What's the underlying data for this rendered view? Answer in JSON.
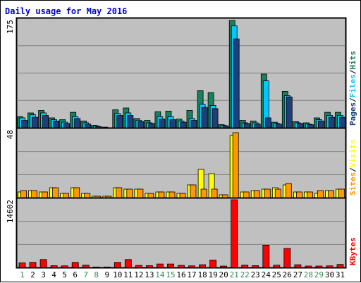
{
  "chart_data": {
    "type": "bar",
    "title": "Daily usage for May 2016",
    "categories": [
      "1",
      "2",
      "3",
      "4",
      "5",
      "6",
      "7",
      "8",
      "9",
      "10",
      "11",
      "12",
      "13",
      "14",
      "15",
      "16",
      "17",
      "18",
      "19",
      "20",
      "21",
      "22",
      "23",
      "24",
      "25",
      "26",
      "27",
      "28",
      "29",
      "30",
      "31"
    ],
    "weekend_days": [
      "1",
      "7",
      "8",
      "14",
      "15",
      "21",
      "22",
      "28",
      "29"
    ],
    "colors": {
      "title": "#0000cc",
      "weekday_label": "#000000",
      "weekend_label": "#2e8b57",
      "background": "#c0c0c0",
      "grid": "#808080",
      "hits": "#1a7f5c",
      "files": "#00c8ff",
      "pages": "#1f3f7a",
      "visits": "#ffff00",
      "sites": "#ff9900",
      "kbytes": "#ff0000"
    },
    "panels": [
      {
        "id": "hits-files-pages",
        "max_label": "175",
        "ymax": 175,
        "legend": [
          {
            "name": "Hits",
            "color": "#1a7f5c"
          },
          {
            "name": "Files",
            "color": "#00c8ff"
          },
          {
            "name": "Pages",
            "color": "#1f3f7a"
          }
        ],
        "series": [
          {
            "name": "Hits",
            "color": "#1a7f5c",
            "values": [
              18,
              24,
              28,
              16,
              13,
              25,
              11,
              4,
              1,
              29,
              32,
              15,
              12,
              26,
              27,
              14,
              28,
              60,
              57,
              5,
              174,
              12,
              11,
              87,
              9,
              59,
              10,
              8,
              16,
              25,
              25
            ]
          },
          {
            "name": "Files",
            "color": "#00c8ff",
            "values": [
              16,
              21,
              24,
              13,
              9,
              18,
              8,
              3,
              0,
              23,
              24,
              12,
              8,
              18,
              18,
              11,
              15,
              38,
              36,
              4,
              165,
              8,
              8,
              76,
              7,
              52,
              8,
              6,
              13,
              20,
              20
            ]
          },
          {
            "name": "Pages",
            "color": "#1f3f7a",
            "values": [
              12,
              17,
              20,
              11,
              7,
              15,
              6,
              2,
              0,
              20,
              20,
              10,
              7,
              14,
              13,
              9,
              12,
              33,
              31,
              3,
              144,
              7,
              6,
              16,
              6,
              50,
              7,
              5,
              11,
              17,
              17
            ]
          }
        ]
      },
      {
        "id": "visits-sites",
        "max_label": "48",
        "ymax": 48,
        "legend": [
          {
            "name": "Visits",
            "color": "#ffff00"
          },
          {
            "name": "Sites",
            "color": "#ff9900"
          }
        ],
        "series": [
          {
            "name": "Visits",
            "color": "#ffff00",
            "values": [
              4,
              5,
              4,
              7,
              3,
              7,
              3,
              1,
              1,
              7,
              6,
              6,
              3,
              4,
              4,
              3,
              9,
              20,
              17,
              2,
              44,
              4,
              5,
              6,
              7,
              9,
              4,
              4,
              3,
              5,
              6
            ]
          },
          {
            "name": "Sites",
            "color": "#ff9900",
            "values": [
              5,
              5,
              4,
              7,
              3,
              7,
              3,
              1,
              1,
              7,
              6,
              6,
              3,
              4,
              4,
              3,
              9,
              6,
              6,
              2,
              46,
              4,
              5,
              6,
              6,
              10,
              4,
              4,
              5,
              5,
              6
            ]
          }
        ]
      },
      {
        "id": "kbytes",
        "max_label": "14602",
        "ymax": 14602,
        "legend": [
          {
            "name": "KBytes",
            "color": "#ff0000"
          }
        ],
        "series": [
          {
            "name": "KBytes",
            "color": "#ff0000",
            "values": [
              1000,
              1100,
              1700,
              400,
              350,
              1100,
              500,
              100,
              100,
              1100,
              1700,
              450,
              400,
              750,
              750,
              450,
              350,
              600,
              1600,
              300,
              14600,
              500,
              400,
              4800,
              500,
              4100,
              600,
              300,
              300,
              350,
              650
            ]
          }
        ]
      }
    ]
  }
}
